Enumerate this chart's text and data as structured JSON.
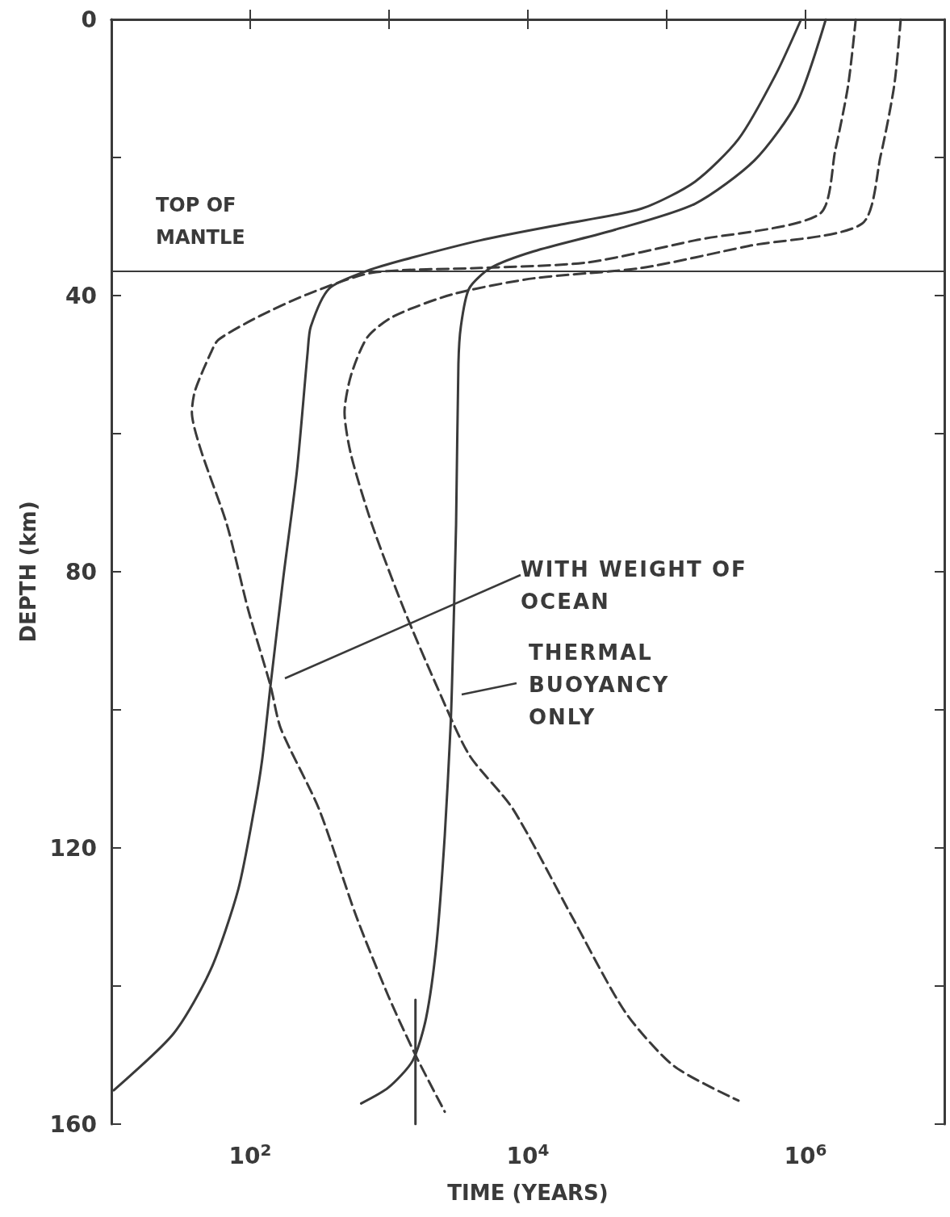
{
  "chart_data": {
    "type": "line",
    "xlabel": "TIME (YEARS)",
    "ylabel": "DEPTH (km)",
    "log": "x",
    "grid": false,
    "marker": "none",
    "xlim": [
      10,
      10000000
    ],
    "xticks": [
      {
        "value": 100,
        "label": "10$^{2}$"
      },
      {
        "value": 1000,
        "label": null
      },
      {
        "value": 10000,
        "label": "10$^{4}$"
      },
      {
        "value": 100000,
        "label": null
      },
      {
        "value": 1000000,
        "label": "10$^{6}$"
      }
    ],
    "ylim": [
      160,
      0
    ],
    "yticks": [
      0,
      {
        "value": 20,
        "label": null
      },
      40,
      {
        "value": 60,
        "label": null
      },
      80,
      {
        "value": 100,
        "label": null
      },
      120,
      {
        "value": 140,
        "label": null
      },
      160
    ],
    "ref_lines": [
      {
        "axis": "y",
        "value": 36.5,
        "label": "TOP OF MANTLE",
        "color": "#3a3a3a",
        "line_style": "solid"
      }
    ],
    "annotations": [
      "WITH WEIGHT OF OCEAN",
      "THERMAL BUOYANCY ONLY"
    ],
    "series": [
      {
        "color": "#3a3a3a",
        "line_style": "solid",
        "x": [
          930000,
          610000,
          330000,
          160000,
          66000,
          17300,
          4540,
          1290,
          700,
          370,
          273,
          259,
          217,
          173,
          140,
          122,
          107,
          82,
          52,
          28,
          10.4
        ],
        "values": [
          0,
          8,
          17.3,
          23.5,
          27.4,
          29.7,
          32,
          34.8,
          36.4,
          39,
          44.5,
          48.3,
          65.4,
          80.9,
          96.5,
          107.2,
          114.3,
          126,
          137.6,
          146.9,
          155.1
        ]
      },
      {
        "color": "#3a3a3a",
        "line_style": "solid",
        "x": [
          1400000,
          875000,
          430000,
          160000,
          41900,
          11000,
          5400,
          3770,
          3290,
          3160,
          3040,
          2840,
          2770,
          2520,
          2200,
          1850,
          1480,
          990,
          630
        ],
        "values": [
          0,
          11.9,
          20.4,
          26.7,
          30.5,
          33.6,
          36,
          39,
          44.5,
          49.9,
          73.2,
          96.5,
          102.7,
          118.2,
          133.8,
          144.6,
          150.8,
          154.7,
          157
        ]
      },
      {
        "color": "#3a3a3a",
        "line_style": "dashed",
        "x": [
          2300000,
          2030000,
          1640000,
          1260000,
          160000,
          26900,
          4540,
          755,
          259,
          116,
          59,
          52,
          40,
          38,
          44,
          68,
          97,
          140,
          166,
          312,
          578,
          986,
          1560,
          2520
        ],
        "values": [
          0,
          9.5,
          18.9,
          28.2,
          32,
          35.2,
          36,
          36.7,
          39.8,
          43,
          46.4,
          48.3,
          53.8,
          56.9,
          62.3,
          73.2,
          85.6,
          96.5,
          102.7,
          114.3,
          129.8,
          141.4,
          150.1,
          158.2
        ]
      },
      {
        "color": "#3a3a3a",
        "line_style": "dashed",
        "x": [
          4850000,
          4360000,
          3480000,
          2550000,
          392000,
          66000,
          11000,
          2880,
          1080,
          700,
          533,
          478,
          533,
          755,
          1290,
          2200,
          3770,
          7770,
          20600,
          50400,
          113000,
          329000
        ],
        "values": [
          0,
          9.5,
          19.7,
          29.6,
          32.8,
          36,
          37.5,
          39.8,
          43,
          46,
          51.5,
          56.9,
          63.1,
          73.2,
          85.6,
          96.5,
          106.5,
          114.3,
          129.8,
          143.8,
          151.6,
          156.6
        ]
      },
      {
        "color": "#3a3a3a",
        "line_style": "solid",
        "x": [
          1550,
          1550
        ],
        "values": [
          142,
          160
        ]
      }
    ]
  }
}
